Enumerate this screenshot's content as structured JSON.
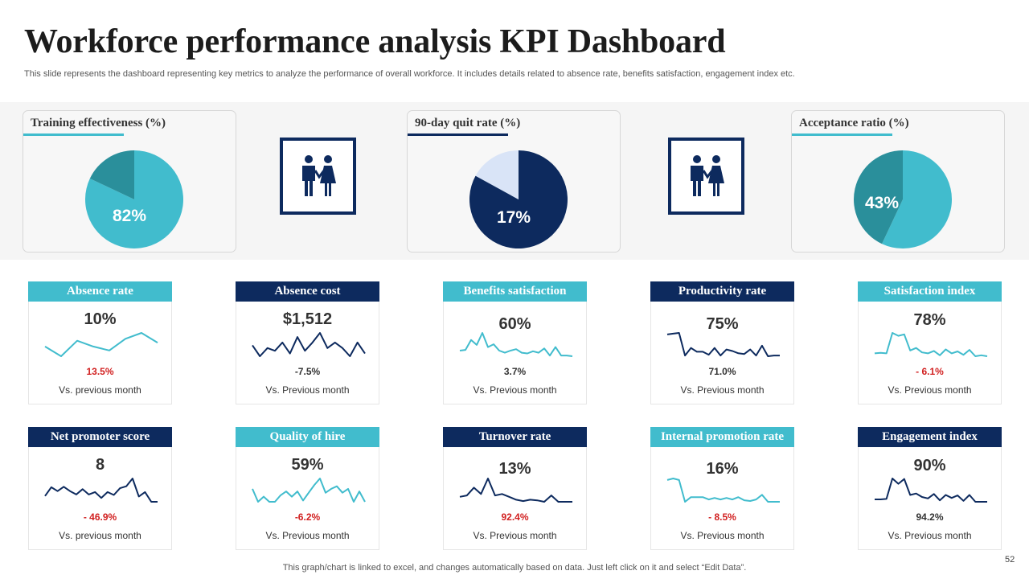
{
  "header": {
    "title": "Workforce performance analysis KPI Dashboard",
    "subtitle": "This slide represents the dashboard representing key metrics to analyze the performance of overall workforce. It includes details related to absence rate, benefits satisfaction, engagement index etc."
  },
  "footer": {
    "note": "This graph/chart is linked to excel, and changes automatically based on data. Just left click on it and select “Edit Data”.",
    "page_number": "52"
  },
  "icons": [
    "people-icon",
    "people-icon"
  ],
  "chart_data": [
    {
      "type": "pie",
      "title": "Training  effectiveness (%)",
      "label": "82%",
      "values": [
        82,
        18
      ],
      "colors": [
        "#41bccd",
        "#2a8f9b"
      ],
      "accent": "#41bccd"
    },
    {
      "type": "pie",
      "title": "90-day quit  rate (%)",
      "label": "17%",
      "values": [
        83,
        17
      ],
      "colors": [
        "#0d2a5e",
        "#d9e4f7"
      ],
      "accent": "#0d2a5e"
    },
    {
      "type": "pie",
      "title": "Acceptance ratio (%)",
      "label": "43%",
      "values": [
        57,
        43
      ],
      "colors": [
        "#41bccd",
        "#2a8f9b"
      ],
      "accent": "#41bccd"
    },
    {
      "type": "line",
      "title": "Absence rate",
      "value": "10%",
      "change": "13.5%",
      "change_color": "#d11f1f",
      "label": "Vs. previous month",
      "header_color": "#41bccd",
      "line_color": "#41bccd",
      "series": [
        3,
        2.5,
        3.3,
        3,
        2.8,
        3.4,
        3.7,
        3.2
      ]
    },
    {
      "type": "line",
      "title": "Absence cost",
      "value": "$1,512",
      "change": "-7.5%",
      "change_color": "#333333",
      "label": "Vs. Previous month",
      "header_color": "#0d2a5e",
      "line_color": "#0d2a5e",
      "series": [
        3,
        2.2,
        2.8,
        2.6,
        3.2,
        2.4,
        3.6,
        2.6,
        3.2,
        3.9,
        2.8,
        3.2,
        2.8,
        2.2,
        3.2,
        2.4
      ]
    },
    {
      "type": "line",
      "title": "Benefits satisfaction",
      "value": "60%",
      "change": "3.7%",
      "change_color": "#333333",
      "label": "Vs. Previous month",
      "header_color": "#41bccd",
      "line_color": "#41bccd",
      "series": [
        2,
        2.1,
        3.5,
        2.8,
        4.5,
        2.5,
        2.9,
        2,
        1.7,
        2,
        2.2,
        1.7,
        1.6,
        1.9,
        1.7,
        2.3,
        1.3,
        2.5,
        1.3,
        1.3,
        1.2
      ]
    },
    {
      "type": "line",
      "title": "Productivity  rate",
      "value": "75%",
      "change": "71.0%",
      "change_color": "#333333",
      "label": "Vs. Previous month",
      "header_color": "#0d2a5e",
      "line_color": "#0d2a5e",
      "series": [
        4,
        4.1,
        4.2,
        1.2,
        2.2,
        1.7,
        1.7,
        1.3,
        2.2,
        1.2,
        2,
        1.8,
        1.5,
        1.4,
        2,
        1.2,
        2.5,
        1.1,
        1.2,
        1.2
      ]
    },
    {
      "type": "line",
      "title": "Satisfaction index",
      "value": "78%",
      "change": "- 6.1%",
      "change_color": "#d11f1f",
      "label": "Vs. Previous month",
      "header_color": "#41bccd",
      "line_color": "#41bccd",
      "series": [
        1.2,
        1.3,
        1.2,
        5.4,
        4.8,
        5.1,
        1.8,
        2.3,
        1.4,
        1.2,
        1.7,
        0.8,
        2,
        1.2,
        1.6,
        0.9,
        1.9,
        0.6,
        0.8,
        0.6
      ]
    },
    {
      "type": "line",
      "title": "Net promoter  score",
      "value": "8",
      "change": "- 46.9%",
      "change_color": "#d11f1f",
      "label": "Vs. previous month",
      "header_color": "#0d2a5e",
      "line_color": "#0d2a5e",
      "series": [
        1.4,
        3.2,
        2.4,
        3.3,
        2.4,
        1.7,
        2.8,
        1.7,
        2.2,
        1,
        2.2,
        1.6,
        3,
        3.4,
        5,
        1.3,
        2.2,
        0.2,
        0.2
      ]
    },
    {
      "type": "line",
      "title": "Quality  of hire",
      "value": "59%",
      "change": "-6.2%",
      "change_color": "#d11f1f",
      "label": "Vs. Previous month",
      "header_color": "#41bccd",
      "line_color": "#41bccd",
      "series": [
        2.5,
        1.5,
        1.9,
        1.5,
        1.5,
        2,
        2.3,
        1.9,
        2.3,
        1.6,
        2.2,
        2.8,
        3.3,
        2.2,
        2.5,
        2.7,
        2.2,
        2.5,
        1.5,
        2.3,
        1.5
      ]
    },
    {
      "type": "line",
      "title": "Turnover rate",
      "value": "13%",
      "change": "92.4%",
      "change_color": "#d11f1f",
      "label": "Vs. Previous month",
      "header_color": "#0d2a5e",
      "line_color": "#0d2a5e",
      "series": [
        2.2,
        2.4,
        3.5,
        2.6,
        4.8,
        2.4,
        2.6,
        2.2,
        1.8,
        1.6,
        1.8,
        1.7,
        1.5,
        2.4,
        1.5,
        1.5,
        1.5
      ]
    },
    {
      "type": "line",
      "title": "Internal  promotion  rate",
      "value": "16%",
      "change": "- 8.5%",
      "change_color": "#d11f1f",
      "label": "Vs. Previous month",
      "header_color": "#41bccd",
      "line_color": "#41bccd",
      "series": [
        4,
        4.2,
        4,
        1.2,
        1.8,
        1.8,
        1.8,
        1.5,
        1.7,
        1.5,
        1.7,
        1.5,
        1.8,
        1.4,
        1.3,
        1.5,
        2.1,
        1.2,
        1.2,
        1.2
      ]
    },
    {
      "type": "line",
      "title": "Engagement  index",
      "value": "90%",
      "change": "94.2%",
      "change_color": "#333333",
      "label": "Vs. Previous month",
      "header_color": "#0d2a5e",
      "line_color": "#0d2a5e",
      "series": [
        1,
        1,
        1.1,
        5.3,
        4.2,
        5.2,
        1.9,
        2.2,
        1.5,
        1.2,
        2.1,
        0.8,
        1.9,
        1.3,
        1.8,
        0.7,
        1.9,
        0.5,
        0.5,
        0.5
      ]
    }
  ]
}
